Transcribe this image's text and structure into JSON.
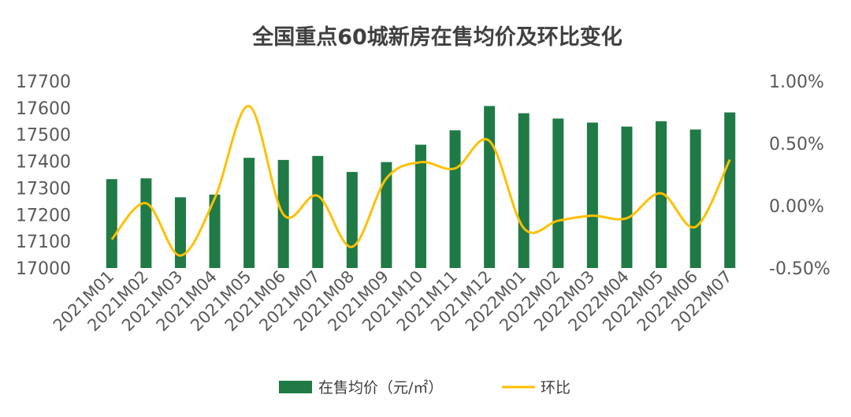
{
  "chart_data": {
    "type": "bar",
    "title": "全国重点60城新房在售均价及环比变化",
    "categories": [
      "2021M01",
      "2021M02",
      "2021M03",
      "2021M04",
      "2021M05",
      "2021M06",
      "2021M07",
      "2021M08",
      "2021M09",
      "2021M10",
      "2021M11",
      "2021M12",
      "2022M01",
      "2022M02",
      "2022M03",
      "2022M04",
      "2022M05",
      "2022M06",
      "2022M07"
    ],
    "series": [
      {
        "name": "在售均价（元/㎡）",
        "type": "bar",
        "axis": "left",
        "color": "#1f7a45",
        "values": [
          17333,
          17336,
          17265,
          17275,
          17413,
          17405,
          17420,
          17360,
          17397,
          17462,
          17516,
          17607,
          17580,
          17560,
          17545,
          17530,
          17550,
          17519,
          17583
        ]
      },
      {
        "name": "环比",
        "type": "line",
        "smooth": true,
        "axis": "right",
        "color": "#ffc000",
        "values": [
          -0.27,
          0.02,
          -0.4,
          0.06,
          0.8,
          -0.07,
          0.08,
          -0.33,
          0.22,
          0.35,
          0.3,
          0.52,
          -0.18,
          -0.12,
          -0.08,
          -0.1,
          0.1,
          -0.17,
          0.37
        ]
      }
    ],
    "y_left": {
      "min": 17000,
      "max": 17700,
      "ticks": [
        17000,
        17100,
        17200,
        17300,
        17400,
        17500,
        17600,
        17700
      ]
    },
    "y_right": {
      "min": -0.5,
      "max": 1.0,
      "ticks": [
        {
          "value": -0.5,
          "label": "-0.50%"
        },
        {
          "value": 0.0,
          "label": "0.00%"
        },
        {
          "value": 0.5,
          "label": "0.50%"
        },
        {
          "value": 1.0,
          "label": "1.00%"
        }
      ]
    },
    "grid": false,
    "legend": "bottom"
  }
}
